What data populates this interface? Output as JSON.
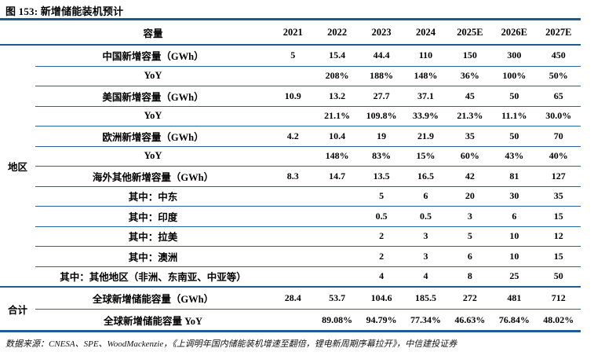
{
  "figure": {
    "title": "图 153: 新增储能装机预计"
  },
  "table": {
    "capacity_header": "容量",
    "years": [
      "2021",
      "2022",
      "2023",
      "2024",
      "2025E",
      "2026E",
      "2027E"
    ],
    "groups": [
      {
        "name": "地区",
        "rows": [
          {
            "label": "中国新增容量（GWh）",
            "values": [
              "5",
              "15.4",
              "44.4",
              "110",
              "150",
              "300",
              "450"
            ]
          },
          {
            "label": "YoY",
            "values": [
              "",
              "208%",
              "188%",
              "148%",
              "36%",
              "100%",
              "50%"
            ]
          },
          {
            "label": "美国新增容量（GWh）",
            "values": [
              "10.9",
              "13.2",
              "27.7",
              "37.1",
              "45",
              "50",
              "65"
            ]
          },
          {
            "label": "YoY",
            "values": [
              "",
              "21.1%",
              "109.8%",
              "33.9%",
              "21.3%",
              "11.1%",
              "30.0%"
            ]
          },
          {
            "label": "欧洲新增容量（GWh）",
            "values": [
              "4.2",
              "10.4",
              "19",
              "21.9",
              "35",
              "50",
              "70"
            ]
          },
          {
            "label": "YoY",
            "values": [
              "",
              "148%",
              "83%",
              "15%",
              "60%",
              "43%",
              "40%"
            ]
          },
          {
            "label": "海外其他新增容量（GWh）",
            "values": [
              "8.3",
              "14.7",
              "13.5",
              "16.5",
              "42",
              "81",
              "127"
            ]
          },
          {
            "label": "其中：中东",
            "values": [
              "",
              "",
              "5",
              "6",
              "20",
              "30",
              "35"
            ]
          },
          {
            "label": "其中：印度",
            "values": [
              "",
              "",
              "0.5",
              "0.5",
              "3",
              "6",
              "15"
            ]
          },
          {
            "label": "其中：拉美",
            "values": [
              "",
              "",
              "2",
              "3",
              "5",
              "10",
              "12"
            ]
          },
          {
            "label": "其中：澳洲",
            "values": [
              "",
              "",
              "2",
              "3",
              "6",
              "10",
              "15"
            ]
          },
          {
            "label": "其中：其他地区（非洲、东南亚、中亚等）",
            "values": [
              "",
              "",
              "4",
              "4",
              "8",
              "25",
              "50"
            ]
          }
        ]
      },
      {
        "name": "合计",
        "rows": [
          {
            "label": "全球新增储能容量（GWh）",
            "values": [
              "28.4",
              "53.7",
              "104.6",
              "185.5",
              "272",
              "481",
              "712"
            ]
          },
          {
            "label": "全球新增储能容量 YoY",
            "values": [
              "",
              "89.08%",
              "94.79%",
              "77.34%",
              "46.63%",
              "76.84%",
              "48.02%"
            ]
          }
        ]
      }
    ]
  },
  "footer": {
    "source": "数据来源：CNESA、SPE、WoodMackenzie，《上调明年国内储能装机增速至翻倍，锂电新周期序幕拉开》，中信建投证券"
  },
  "colors": {
    "rule_blue": "#1e5a96",
    "text": "#000000"
  }
}
